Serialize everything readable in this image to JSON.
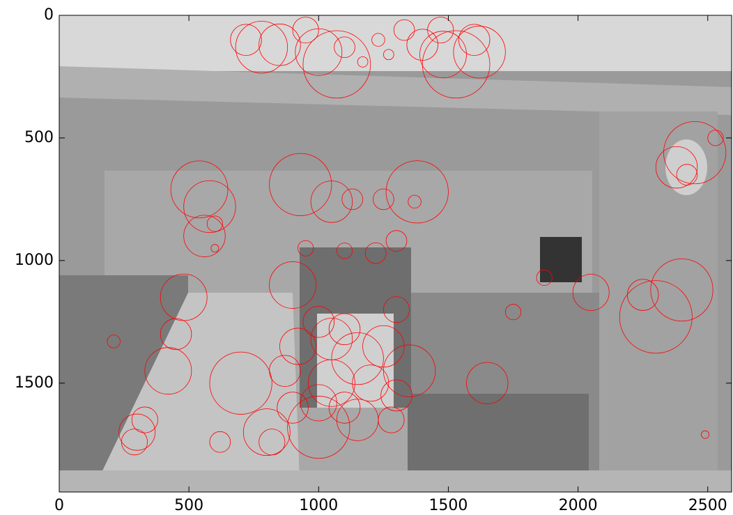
{
  "chart_data": {
    "type": "scatter",
    "color": "#ff0000",
    "xlim": [
      0,
      2592
    ],
    "ylim": [
      1944,
      0
    ],
    "xticks": [
      0,
      500,
      1000,
      1500,
      2000,
      2500
    ],
    "yticks": [
      0,
      500,
      1000,
      1500
    ],
    "x": [
      720,
      780,
      850,
      950,
      1000,
      1070,
      1100,
      1170,
      1230,
      1270,
      1330,
      1400,
      1480,
      1530,
      1600,
      1620,
      1470,
      2450,
      2380,
      2530,
      2420,
      540,
      580,
      560,
      600,
      600,
      930,
      1050,
      1130,
      1250,
      1370,
      1380,
      1300,
      950,
      1220,
      1100,
      1870,
      2050,
      2250,
      2400,
      2300,
      1750,
      210,
      480,
      450,
      420,
      330,
      290,
      300,
      1000,
      1050,
      1100,
      1150,
      1050,
      1000,
      1100,
      1200,
      1250,
      1300,
      1350,
      1280,
      1150,
      1000,
      900,
      800,
      820,
      620,
      700,
      870,
      920,
      900,
      1650,
      1300,
      2490
    ],
    "values": [
      100,
      130,
      120,
      60,
      150,
      200,
      130,
      190,
      100,
      160,
      60,
      120,
      160,
      200,
      100,
      150,
      60,
      560,
      620,
      500,
      650,
      710,
      780,
      900,
      850,
      950,
      690,
      760,
      750,
      750,
      760,
      720,
      920,
      950,
      970,
      960,
      1070,
      1130,
      1140,
      1120,
      1230,
      1210,
      1330,
      1150,
      1300,
      1450,
      1650,
      1740,
      1700,
      1250,
      1320,
      1280,
      1400,
      1500,
      1580,
      1600,
      1500,
      1350,
      1550,
      1450,
      1650,
      1650,
      1680,
      1600,
      1700,
      1740,
      1740,
      1500,
      1450,
      1350,
      1100,
      1500,
      1200,
      1710
    ],
    "sizes": [
      60,
      100,
      80,
      50,
      90,
      130,
      40,
      20,
      25,
      20,
      40,
      60,
      90,
      130,
      60,
      100,
      50,
      120,
      80,
      30,
      40,
      110,
      100,
      80,
      30,
      15,
      120,
      80,
      40,
      40,
      25,
      120,
      40,
      30,
      40,
      30,
      30,
      70,
      60,
      120,
      140,
      30,
      25,
      90,
      60,
      90,
      50,
      50,
      70,
      60,
      80,
      60,
      100,
      90,
      70,
      60,
      70,
      80,
      60,
      100,
      50,
      80,
      120,
      60,
      90,
      50,
      40,
      120,
      60,
      70,
      90,
      80,
      50,
      15
    ]
  }
}
